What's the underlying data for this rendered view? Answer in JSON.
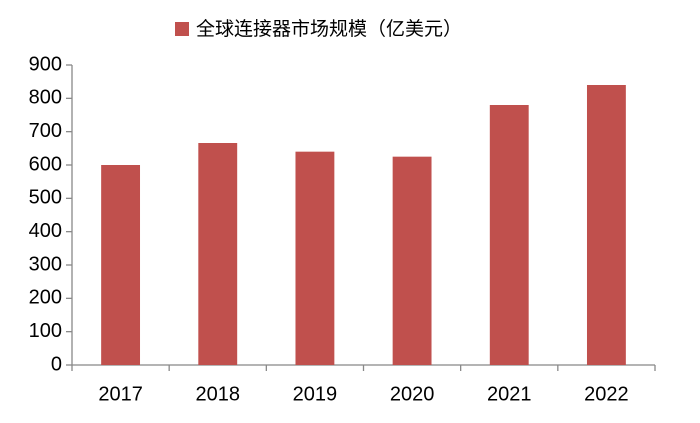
{
  "chart_data": {
    "type": "bar",
    "categories": [
      "2017",
      "2018",
      "2019",
      "2020",
      "2021",
      "2022"
    ],
    "series": [
      {
        "name": "全球连接器市场规模（亿美元）",
        "color": "#c0504d",
        "values": [
          600,
          666,
          640,
          625,
          780,
          840
        ]
      }
    ],
    "ylim": [
      0,
      900
    ],
    "yticks": [
      0,
      100,
      200,
      300,
      400,
      500,
      600,
      700,
      800,
      900
    ],
    "grid": false,
    "legend": "top"
  }
}
